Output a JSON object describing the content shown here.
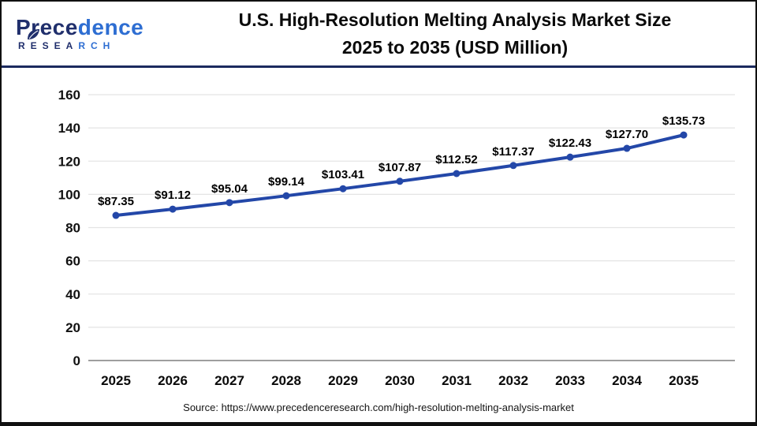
{
  "logo": {
    "name_part1": "Prece",
    "name_part2": "dence",
    "subtitle_part1": "RESEA",
    "subtitle_part2": "RCH"
  },
  "title": {
    "line1": "U.S. High-Resolution Melting Analysis Market Size",
    "line2": "2025 to 2035 (USD Million)"
  },
  "source": "Source: https://www.precedenceresearch.com/high-resolution-melting-analysis-market",
  "chart_data": {
    "type": "line",
    "title": "U.S. High-Resolution Melting Analysis Market Size 2025 to 2035 (USD Million)",
    "categories": [
      "2025",
      "2026",
      "2027",
      "2028",
      "2029",
      "2030",
      "2031",
      "2032",
      "2033",
      "2034",
      "2035"
    ],
    "values": [
      87.35,
      91.12,
      95.04,
      99.14,
      103.41,
      107.87,
      112.52,
      117.37,
      122.43,
      127.7,
      135.73
    ],
    "value_labels": [
      "$87.35",
      "$91.12",
      "$95.04",
      "$99.14",
      "$103.41",
      "$107.87",
      "$112.52",
      "$117.37",
      "$122.43",
      "$127.70",
      "$135.73"
    ],
    "xlabel": "",
    "ylabel": "",
    "ylim": [
      0,
      160
    ],
    "ytick_step": 20,
    "grid": true,
    "legend": false,
    "line_color": "#2347a8",
    "grid_color": "#e4e4e4",
    "zero_line_color": "#9e9e9e",
    "label_color": "#111111"
  }
}
